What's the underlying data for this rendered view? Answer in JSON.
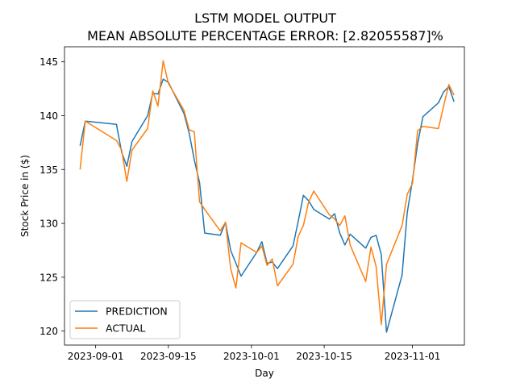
{
  "chart_data": {
    "type": "line",
    "title": "LSTM MODEL OUTPUT",
    "subtitle": "MEAN ABSOLUTE PERCENTAGE ERROR: [2.82055587]%",
    "xlabel": "Day",
    "ylabel": "Stock Price in ($)",
    "xlim": [
      "2023-08-26",
      "2023-11-11"
    ],
    "ylim": [
      118.7,
      146.4
    ],
    "x_ticks": [
      "2023-09-01",
      "2023-09-15",
      "2023-10-01",
      "2023-10-15",
      "2023-11-01"
    ],
    "y_ticks": [
      120,
      125,
      130,
      135,
      140,
      145
    ],
    "grid": false,
    "legend_position": "lower-left",
    "x": [
      "2023-08-29",
      "2023-08-30",
      "2023-09-05",
      "2023-09-06",
      "2023-09-07",
      "2023-09-08",
      "2023-09-11",
      "2023-09-12",
      "2023-09-13",
      "2023-09-14",
      "2023-09-15",
      "2023-09-18",
      "2023-09-19",
      "2023-09-20",
      "2023-09-21",
      "2023-09-22",
      "2023-09-25",
      "2023-09-26",
      "2023-09-27",
      "2023-09-28",
      "2023-09-29",
      "2023-10-02",
      "2023-10-03",
      "2023-10-04",
      "2023-10-05",
      "2023-10-06",
      "2023-10-09",
      "2023-10-10",
      "2023-10-11",
      "2023-10-12",
      "2023-10-13",
      "2023-10-16",
      "2023-10-17",
      "2023-10-18",
      "2023-10-19",
      "2023-10-20",
      "2023-10-23",
      "2023-10-24",
      "2023-10-25",
      "2023-10-26",
      "2023-10-27",
      "2023-10-30",
      "2023-10-31",
      "2023-11-01",
      "2023-11-02",
      "2023-11-03",
      "2023-11-06",
      "2023-11-07",
      "2023-11-08",
      "2023-11-09"
    ],
    "series": [
      {
        "name": "PREDICTION",
        "color": "#1f77b4",
        "values": [
          137.2,
          139.5,
          139.2,
          136.6,
          135.3,
          137.6,
          140.0,
          142.1,
          142.0,
          143.4,
          143.1,
          140.2,
          138.4,
          135.9,
          133.8,
          129.1,
          128.9,
          130.1,
          127.5,
          126.3,
          125.1,
          127.3,
          128.3,
          126.3,
          126.4,
          125.8,
          127.9,
          130.2,
          132.6,
          132.1,
          131.3,
          130.4,
          130.9,
          129.1,
          128.0,
          129.0,
          127.7,
          128.7,
          128.9,
          127.1,
          119.9,
          125.2,
          131.0,
          134.0,
          137.4,
          139.9,
          141.2,
          142.2,
          142.7,
          141.3
        ]
      },
      {
        "name": "ACTUAL",
        "color": "#ff7f0e",
        "values": [
          135.0,
          139.5,
          137.7,
          136.8,
          133.9,
          136.8,
          138.8,
          142.3,
          140.9,
          145.1,
          143.0,
          140.5,
          138.7,
          138.5,
          132.0,
          131.3,
          129.3,
          130.1,
          125.8,
          124.0,
          128.2,
          127.3,
          127.9,
          126.1,
          126.7,
          124.2,
          126.2,
          128.8,
          129.8,
          132.0,
          133.0,
          130.8,
          130.4,
          129.8,
          130.7,
          128.0,
          124.6,
          127.8,
          126.0,
          120.6,
          126.2,
          129.8,
          132.7,
          133.7,
          138.6,
          139.0,
          138.8,
          140.9,
          142.9,
          141.9
        ]
      }
    ]
  }
}
